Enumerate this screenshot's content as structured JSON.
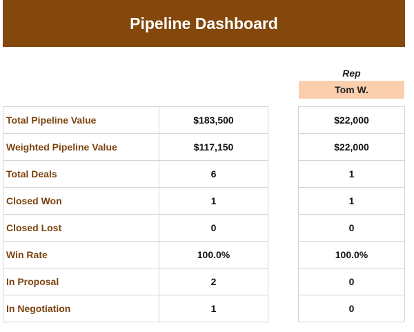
{
  "title": "Pipeline Dashboard",
  "rep_label": "Rep",
  "rep_name": "Tom W.",
  "colors": {
    "banner": "#84480d",
    "label_text": "#7a430b",
    "rep_highlight": "#fbcfae"
  },
  "metrics": [
    {
      "label": "Total Pipeline Value",
      "total": "$183,500",
      "rep": "$22,000"
    },
    {
      "label": "Weighted Pipeline Value",
      "total": "$117,150",
      "rep": "$22,000"
    },
    {
      "label": "Total Deals",
      "total": "6",
      "rep": "1"
    },
    {
      "label": "Closed Won",
      "total": "1",
      "rep": "1"
    },
    {
      "label": "Closed Lost",
      "total": "0",
      "rep": "0"
    },
    {
      "label": "Win Rate",
      "total": "100.0%",
      "rep": "100.0%"
    },
    {
      "label": "In Proposal",
      "total": "2",
      "rep": "0"
    },
    {
      "label": "In Negotiation",
      "total": "1",
      "rep": "0"
    }
  ]
}
